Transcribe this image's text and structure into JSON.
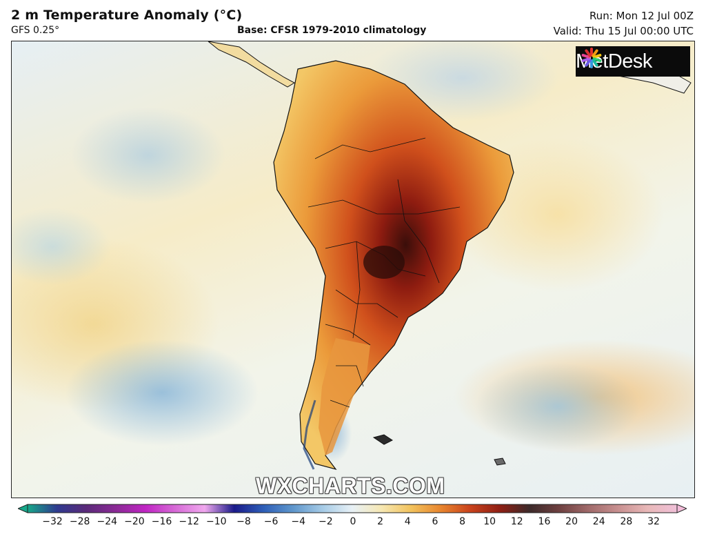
{
  "header": {
    "title": "2 m Temperature Anomaly (°C)",
    "model": "GFS 0.25°",
    "base": "Base: CFSR 1979-2010 climatology",
    "run": "Run: Mon 12 Jul 00Z",
    "valid": "Valid: Thu 15 Jul 00:00 UTC"
  },
  "logo": {
    "text": "MetDesk"
  },
  "watermark": "WXCHARTS.COM",
  "colorbar": {
    "ticks": [
      "−32",
      "−28",
      "−24",
      "−20",
      "−16",
      "−12",
      "−10",
      "−8",
      "−6",
      "−4",
      "−2",
      "0",
      "2",
      "4",
      "6",
      "8",
      "10",
      "12",
      "16",
      "20",
      "24",
      "28",
      "32"
    ],
    "colors": [
      "#17a88a",
      "#2f3a8f",
      "#5b2a7a",
      "#8b2a96",
      "#c025c4",
      "#d66ad6",
      "#f0a8ee",
      "#1a1a8a",
      "#2e5fb8",
      "#5f97cc",
      "#a6cbe6",
      "#e8f1f6",
      "#f6e7b2",
      "#f2c25c",
      "#e8852e",
      "#c9421c",
      "#8f1f14",
      "#3d2a2a",
      "#6e4040",
      "#a06a6a",
      "#c89090",
      "#e8b8b8",
      "#f0c0d8"
    ],
    "arrow_left_color": "#17a88a",
    "arrow_right_color": "#f3bcd9"
  }
}
